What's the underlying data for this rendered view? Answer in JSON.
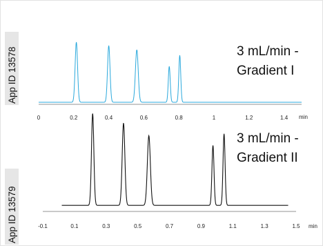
{
  "colors": {
    "top": "#29a8dc",
    "bottom": "#111111",
    "label_bg": "#e6e6e6"
  },
  "chart_data": [
    {
      "type": "line",
      "app_id": "App ID 13578",
      "condition_line1": "3 mL/min -",
      "condition_line2": "Gradient I",
      "xunit": "min",
      "xticks": [
        "0",
        "0.2",
        "0.4",
        "0.6",
        "0.8",
        "1",
        "1.2",
        "1.4"
      ],
      "xlim": [
        0,
        1.5
      ],
      "ylim": [
        0,
        1
      ],
      "baseline": 0.02,
      "peaks": [
        {
          "rt": 0.215,
          "height": 0.87,
          "width": 0.007
        },
        {
          "rt": 0.4,
          "height": 0.82,
          "width": 0.007
        },
        {
          "rt": 0.56,
          "height": 0.76,
          "width": 0.008
        },
        {
          "rt": 0.745,
          "height": 0.52,
          "width": 0.0055
        },
        {
          "rt": 0.805,
          "height": 0.68,
          "width": 0.0055
        }
      ]
    },
    {
      "type": "line",
      "app_id": "App ID 13579",
      "condition_line1": "3 mL/min -",
      "condition_line2": "Gradient II",
      "xunit": "min",
      "xticks": [
        "-0.1",
        "0.1",
        "0.3",
        "0.5",
        "0.7",
        "0.9",
        "1.1",
        "1.3",
        "1.5"
      ],
      "xlim": [
        -0.1,
        1.5
      ],
      "ylim": [
        0,
        1
      ],
      "trace_range": [
        0.02,
        1.45
      ],
      "baseline": 0.02,
      "peaks": [
        {
          "rt": 0.215,
          "height": 0.95,
          "width": 0.0075
        },
        {
          "rt": 0.41,
          "height": 0.85,
          "width": 0.0085
        },
        {
          "rt": 0.57,
          "height": 0.72,
          "width": 0.0095
        },
        {
          "rt": 0.975,
          "height": 0.62,
          "width": 0.0065
        },
        {
          "rt": 1.045,
          "height": 0.74,
          "width": 0.0065
        }
      ]
    }
  ]
}
